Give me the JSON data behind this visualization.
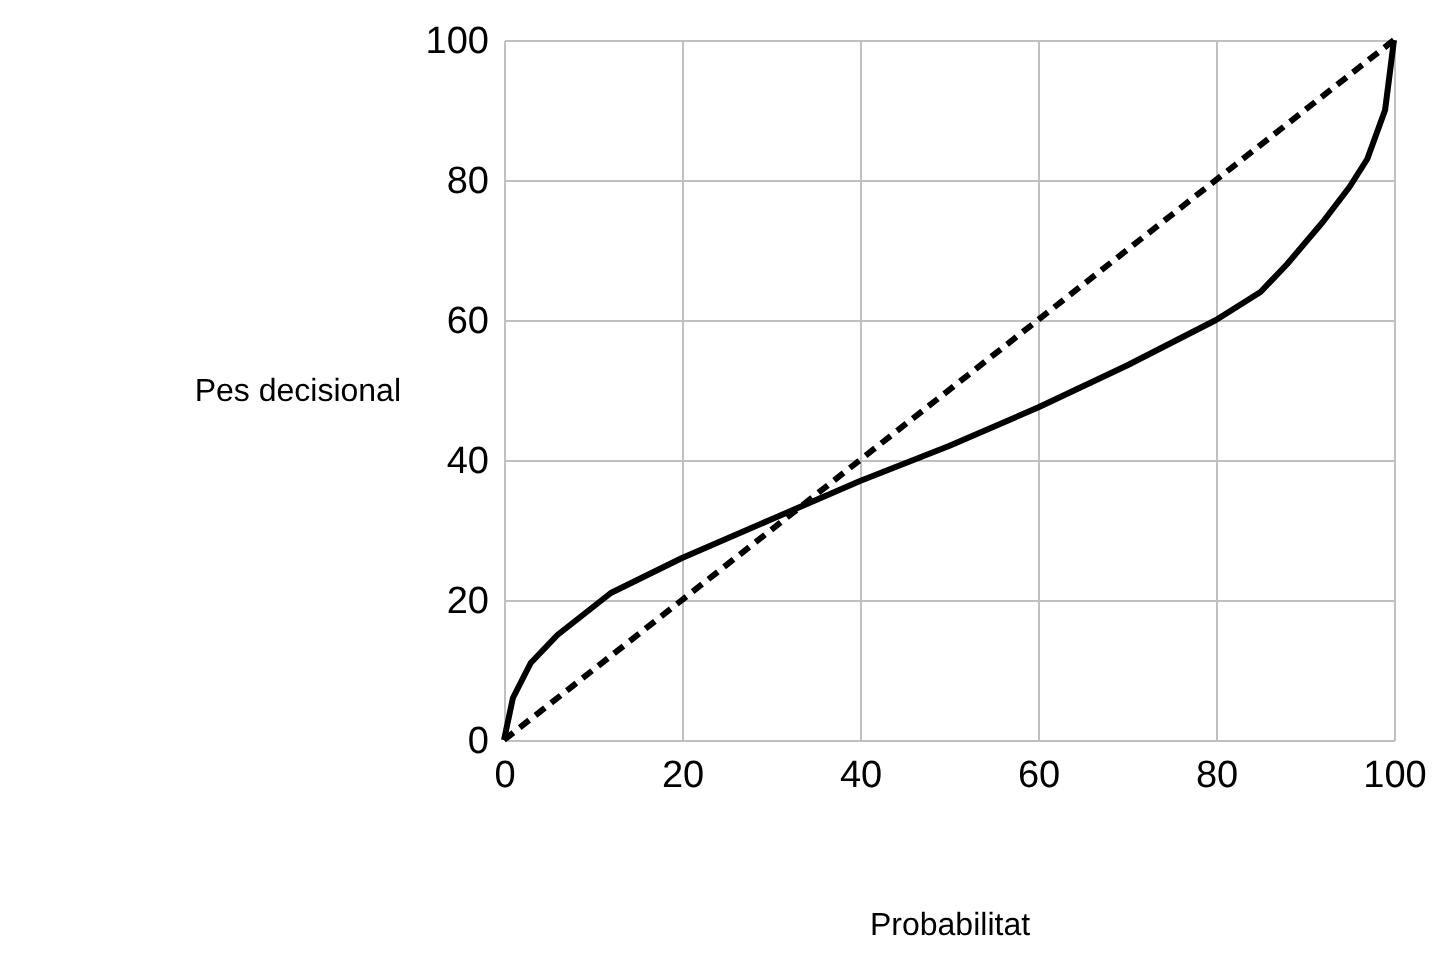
{
  "chart_data": {
    "type": "line",
    "xlabel": "Probabilitat",
    "ylabel": "Pes decisional",
    "xlim": [
      0,
      100
    ],
    "ylim": [
      0,
      100
    ],
    "xticks": [
      0,
      20,
      40,
      60,
      80,
      100
    ],
    "yticks": [
      0,
      20,
      40,
      60,
      80,
      100
    ],
    "grid": true,
    "marker": "none",
    "series": [
      {
        "color": "#000000",
        "line_style": "solid",
        "x": [
          0,
          1,
          3,
          6,
          12,
          20,
          30,
          40,
          50,
          60,
          70,
          80,
          85,
          88,
          92,
          95,
          97,
          99,
          100
        ],
        "values": [
          0,
          6,
          11,
          15,
          21,
          26,
          31.5,
          37,
          42,
          47.5,
          53.5,
          60,
          64,
          68,
          74,
          79,
          83,
          90,
          100
        ]
      },
      {
        "color": "#000000",
        "line_style": "dashed",
        "x": [
          0,
          100
        ],
        "values": [
          0,
          100
        ]
      }
    ]
  }
}
